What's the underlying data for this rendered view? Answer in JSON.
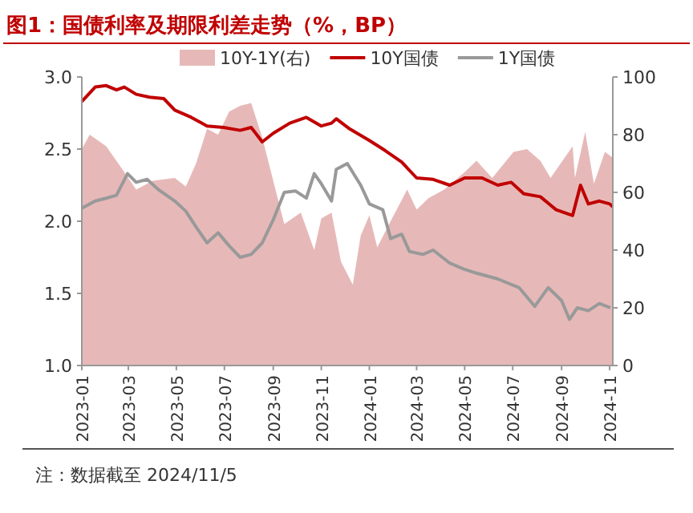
{
  "chart_data": {
    "type": "line",
    "title": "图1：国债利率及期限利差走势（%，BP）",
    "annotations": [
      "注：数据截至 2024/11/5"
    ],
    "xlim": [
      "2023-01-01",
      "2024-11-05"
    ],
    "xticks": [
      "2023-01",
      "2023-03",
      "2023-05",
      "2023-07",
      "2023-09",
      "2023-11",
      "2024-01",
      "2024-03",
      "2024-05",
      "2024-07",
      "2024-09",
      "2024-11"
    ],
    "ylim": [
      1,
      3
    ],
    "yticks": [
      {
        "value": 1,
        "label": "1.0"
      },
      {
        "value": 1.5,
        "label": "1.5"
      },
      {
        "value": 2,
        "label": "2.0"
      },
      {
        "value": 2.5,
        "label": "2.5"
      },
      {
        "value": 3,
        "label": "3.0"
      }
    ],
    "y2lim": [
      0,
      100
    ],
    "y2ticks": [
      0,
      20,
      40,
      60,
      80,
      100
    ],
    "legend": "top",
    "grid": false,
    "line_style": "solid",
    "marker": "none",
    "series": [
      {
        "name": "10Y-1Y(右)",
        "type": "area",
        "axis": "y2",
        "color": "#e6b9b8",
        "x": [
          "2023-01-01",
          "2023-01-11",
          "2023-02-01",
          "2023-02-24",
          "2023-03-11",
          "2023-04-01",
          "2023-04-29",
          "2023-05-13",
          "2023-05-26",
          "2023-06-09",
          "2023-06-23",
          "2023-07-07",
          "2023-07-21",
          "2023-08-04",
          "2023-08-18",
          "2023-09-01",
          "2023-09-15",
          "2023-10-06",
          "2023-10-23",
          "2023-11-01",
          "2023-11-14",
          "2023-11-26",
          "2023-12-11",
          "2023-12-21",
          "2024-01-01",
          "2024-01-11",
          "2024-01-28",
          "2024-02-18",
          "2024-03-01",
          "2024-03-16",
          "2024-04-05",
          "2024-05-01",
          "2024-05-16",
          "2024-06-05",
          "2024-07-02",
          "2024-07-19",
          "2024-08-05",
          "2024-08-18",
          "2024-09-15",
          "2024-09-18",
          "2024-10-01",
          "2024-10-12",
          "2024-10-26",
          "2024-11-05"
        ],
        "values": [
          75,
          80,
          76,
          67,
          61,
          64,
          65,
          62,
          70,
          82,
          80,
          88,
          90,
          91,
          79,
          64,
          49,
          53,
          40,
          51,
          53,
          36,
          28,
          45,
          52,
          41,
          50,
          61,
          54,
          58,
          61,
          67,
          71,
          65,
          74,
          75,
          71,
          65,
          76,
          65,
          81,
          63,
          74,
          72
        ]
      },
      {
        "name": "10Y国债",
        "color": "#c00000",
        "x": [
          "2023-01-01",
          "2023-01-18",
          "2023-02-01",
          "2023-02-14",
          "2023-02-24",
          "2023-03-11",
          "2023-03-28",
          "2023-04-15",
          "2023-04-29",
          "2023-05-20",
          "2023-06-09",
          "2023-06-30",
          "2023-07-21",
          "2023-08-04",
          "2023-08-18",
          "2023-09-01",
          "2023-09-22",
          "2023-10-13",
          "2023-11-01",
          "2023-11-14",
          "2023-11-20",
          "2023-12-07",
          "2024-01-01",
          "2024-01-21",
          "2024-02-11",
          "2024-03-01",
          "2024-03-22",
          "2024-04-12",
          "2024-05-01",
          "2024-05-23",
          "2024-06-12",
          "2024-06-29",
          "2024-07-15",
          "2024-08-05",
          "2024-08-25",
          "2024-09-15",
          "2024-09-25",
          "2024-10-05",
          "2024-10-19",
          "2024-11-01",
          "2024-11-05"
        ],
        "values": [
          2.83,
          2.93,
          2.94,
          2.91,
          2.93,
          2.88,
          2.86,
          2.85,
          2.77,
          2.72,
          2.66,
          2.65,
          2.63,
          2.65,
          2.55,
          2.61,
          2.68,
          2.72,
          2.66,
          2.68,
          2.71,
          2.64,
          2.56,
          2.49,
          2.41,
          2.3,
          2.29,
          2.25,
          2.3,
          2.3,
          2.25,
          2.27,
          2.19,
          2.17,
          2.08,
          2.04,
          2.25,
          2.12,
          2.14,
          2.12,
          2.1
        ]
      },
      {
        "name": "1Y国债",
        "color": "#999999",
        "x": [
          "2023-01-01",
          "2023-01-18",
          "2023-02-01",
          "2023-02-14",
          "2023-02-28",
          "2023-03-11",
          "2023-03-25",
          "2023-04-08",
          "2023-04-29",
          "2023-05-13",
          "2023-05-26",
          "2023-06-09",
          "2023-06-23",
          "2023-07-07",
          "2023-07-21",
          "2023-08-04",
          "2023-08-18",
          "2023-09-01",
          "2023-09-15",
          "2023-09-29",
          "2023-10-13",
          "2023-10-23",
          "2023-11-01",
          "2023-11-14",
          "2023-11-20",
          "2023-12-04",
          "2023-12-21",
          "2024-01-01",
          "2024-01-18",
          "2024-01-28",
          "2024-02-11",
          "2024-02-21",
          "2024-03-09",
          "2024-03-22",
          "2024-04-12",
          "2024-04-29",
          "2024-05-16",
          "2024-06-12",
          "2024-07-09",
          "2024-07-29",
          "2024-08-15",
          "2024-09-01",
          "2024-09-11",
          "2024-09-21",
          "2024-10-05",
          "2024-10-19",
          "2024-11-02"
        ],
        "values": [
          2.09,
          2.14,
          2.16,
          2.18,
          2.33,
          2.27,
          2.29,
          2.22,
          2.14,
          2.07,
          1.96,
          1.85,
          1.92,
          1.83,
          1.75,
          1.77,
          1.85,
          2.01,
          2.2,
          2.21,
          2.16,
          2.33,
          2.26,
          2.14,
          2.36,
          2.4,
          2.25,
          2.12,
          2.08,
          1.88,
          1.91,
          1.79,
          1.77,
          1.8,
          1.71,
          1.67,
          1.64,
          1.6,
          1.54,
          1.41,
          1.54,
          1.45,
          1.32,
          1.4,
          1.38,
          1.43,
          1.4
        ]
      }
    ]
  }
}
